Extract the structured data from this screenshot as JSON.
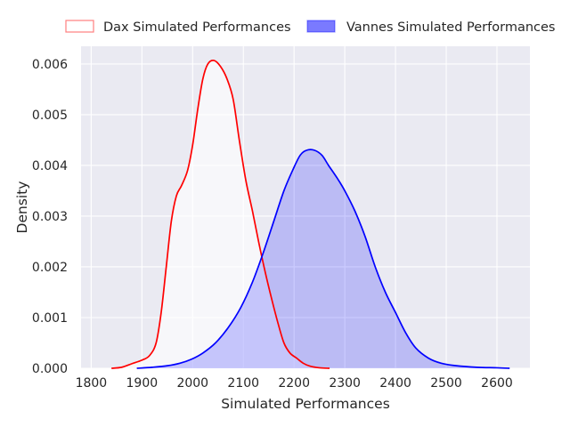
{
  "chart_data": {
    "type": "area",
    "title": "",
    "xlabel": "Simulated Performances",
    "ylabel": "Density",
    "xlim": [
      1780,
      2665
    ],
    "ylim": [
      0,
      0.00635
    ],
    "x_ticks": [
      1800,
      1900,
      2000,
      2100,
      2200,
      2300,
      2400,
      2500,
      2600
    ],
    "x_tick_labels": [
      "1800",
      "1900",
      "2000",
      "2100",
      "2200",
      "2300",
      "2400",
      "2500",
      "2600"
    ],
    "y_ticks": [
      0,
      0.001,
      0.002,
      0.003,
      0.004,
      0.005,
      0.006
    ],
    "y_tick_labels": [
      "0.000",
      "0.001",
      "0.002",
      "0.003",
      "0.004",
      "0.005",
      "0.006"
    ],
    "grid": true,
    "legend_position": "top-center",
    "series": [
      {
        "name": "Dax Simulated Performances",
        "line_color": "#ff0000",
        "fill_color": "#ffffff",
        "fill_opacity": 0.6,
        "legend_edge_color": "#ff7f7f",
        "points": [
          [
            1840,
            0
          ],
          [
            1860,
            2e-05
          ],
          [
            1880,
            9e-05
          ],
          [
            1900,
            0.00016
          ],
          [
            1915,
            0.00025
          ],
          [
            1928,
            0.0005
          ],
          [
            1938,
            0.0011
          ],
          [
            1948,
            0.002
          ],
          [
            1958,
            0.0029
          ],
          [
            1968,
            0.0034
          ],
          [
            1978,
            0.0036
          ],
          [
            1990,
            0.0039
          ],
          [
            2000,
            0.0044
          ],
          [
            2010,
            0.0051
          ],
          [
            2020,
            0.0057
          ],
          [
            2030,
            0.006
          ],
          [
            2042,
            0.00607
          ],
          [
            2055,
            0.00595
          ],
          [
            2068,
            0.0057
          ],
          [
            2080,
            0.0053
          ],
          [
            2092,
            0.0045
          ],
          [
            2105,
            0.0037
          ],
          [
            2118,
            0.0031
          ],
          [
            2130,
            0.0025
          ],
          [
            2143,
            0.0019
          ],
          [
            2155,
            0.0014
          ],
          [
            2168,
            0.0009
          ],
          [
            2180,
            0.0005
          ],
          [
            2192,
            0.0003
          ],
          [
            2205,
            0.0002
          ],
          [
            2218,
            0.0001
          ],
          [
            2232,
            4e-05
          ],
          [
            2250,
            1e-05
          ],
          [
            2270,
            0
          ]
        ]
      },
      {
        "name": "Vannes Simulated Performances",
        "line_color": "#0000ff",
        "fill_color": "#0000ff",
        "fill_opacity": 0.2,
        "legend_fill_color": "#7a7aff",
        "points": [
          [
            1890,
            0
          ],
          [
            1920,
            2e-05
          ],
          [
            1950,
            5e-05
          ],
          [
            1975,
            0.0001
          ],
          [
            1998,
            0.00018
          ],
          [
            2020,
            0.0003
          ],
          [
            2045,
            0.0005
          ],
          [
            2070,
            0.0008
          ],
          [
            2095,
            0.0012
          ],
          [
            2118,
            0.0017
          ],
          [
            2140,
            0.0023
          ],
          [
            2160,
            0.0029
          ],
          [
            2180,
            0.0035
          ],
          [
            2197,
            0.0039
          ],
          [
            2212,
            0.0042
          ],
          [
            2225,
            0.0043
          ],
          [
            2240,
            0.0043
          ],
          [
            2255,
            0.0042
          ],
          [
            2268,
            0.004
          ],
          [
            2285,
            0.00375
          ],
          [
            2300,
            0.0035
          ],
          [
            2320,
            0.0031
          ],
          [
            2340,
            0.0026
          ],
          [
            2360,
            0.002
          ],
          [
            2380,
            0.0015
          ],
          [
            2400,
            0.0011
          ],
          [
            2420,
            0.0007
          ],
          [
            2440,
            0.0004
          ],
          [
            2465,
            0.0002
          ],
          [
            2490,
            0.0001
          ],
          [
            2520,
            5e-05
          ],
          [
            2560,
            2e-05
          ],
          [
            2600,
            1e-05
          ],
          [
            2625,
            0
          ]
        ]
      }
    ]
  }
}
